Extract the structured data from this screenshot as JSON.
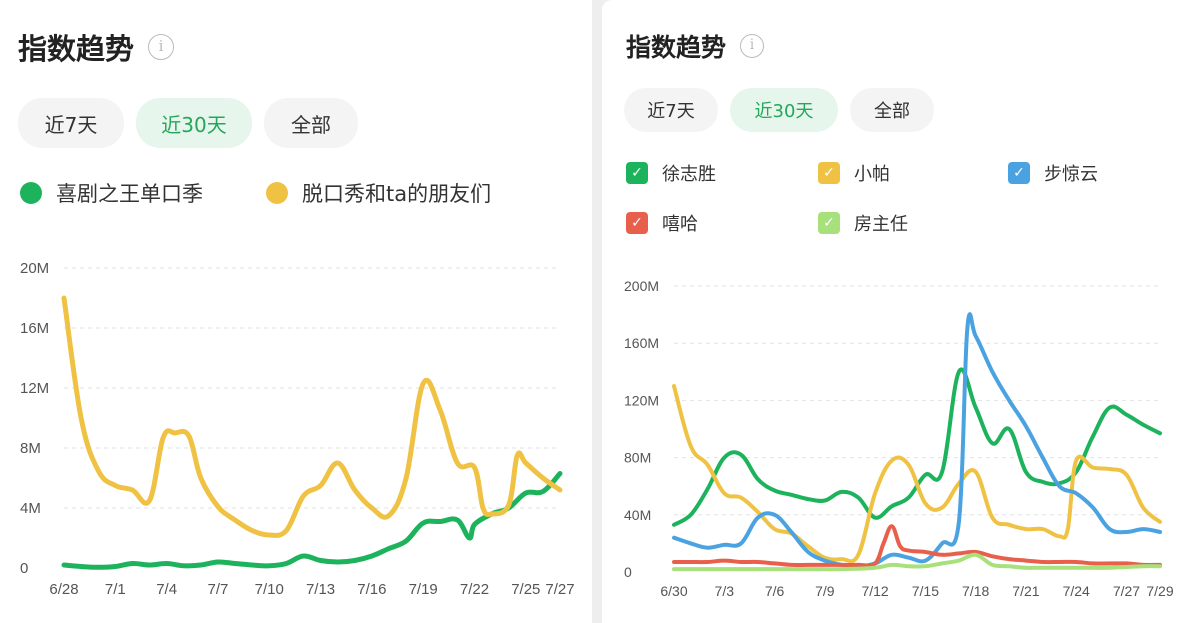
{
  "left": {
    "title": "指数趋势",
    "info_icon": "info-icon",
    "tabs": [
      {
        "label": "近7天",
        "active": false
      },
      {
        "label": "近30天",
        "active": true
      },
      {
        "label": "全部",
        "active": false
      }
    ],
    "legend": [
      {
        "label": "喜剧之王单口季",
        "color": "#1db35c"
      },
      {
        "label": "脱口秀和ta的朋友们",
        "color": "#f0c244"
      }
    ]
  },
  "right": {
    "title": "指数趋势",
    "info_icon": "info-icon",
    "tabs": [
      {
        "label": "近7天",
        "active": false
      },
      {
        "label": "近30天",
        "active": true
      },
      {
        "label": "全部",
        "active": false
      }
    ],
    "legend": [
      {
        "label": "徐志胜",
        "color": "#1db35c",
        "checked": true
      },
      {
        "label": "小帕",
        "color": "#f0c244",
        "checked": true
      },
      {
        "label": "步惊云",
        "color": "#4aa3e0",
        "checked": true
      },
      {
        "label": "嘻哈",
        "color": "#e8604c",
        "checked": true
      },
      {
        "label": "房主任",
        "color": "#a8e07c",
        "checked": true
      }
    ]
  },
  "chart_data": [
    {
      "type": "line",
      "ylim": [
        0,
        20
      ],
      "y_ticks": [
        "0",
        "4M",
        "8M",
        "12M",
        "16M",
        "20M"
      ],
      "y_tick_values": [
        0,
        4,
        8,
        12,
        16,
        20
      ],
      "x_range": [
        0,
        29
      ],
      "x_ticks": [
        {
          "label": "6/28",
          "x": 0
        },
        {
          "label": "7/1",
          "x": 3
        },
        {
          "label": "7/4",
          "x": 6
        },
        {
          "label": "7/7",
          "x": 9
        },
        {
          "label": "7/10",
          "x": 12
        },
        {
          "label": "7/13",
          "x": 15
        },
        {
          "label": "7/16",
          "x": 18
        },
        {
          "label": "7/19",
          "x": 21
        },
        {
          "label": "7/22",
          "x": 24
        },
        {
          "label": "7/25",
          "x": 27
        },
        {
          "label": "7/27",
          "x": 29
        }
      ],
      "grid": true,
      "series": [
        {
          "name": "喜剧之王单口季",
          "color": "#1db35c",
          "points": [
            [
              0,
              0.2
            ],
            [
              1,
              0.1
            ],
            [
              2,
              0.05
            ],
            [
              3,
              0.1
            ],
            [
              4,
              0.3
            ],
            [
              5,
              0.2
            ],
            [
              6,
              0.3
            ],
            [
              7,
              0.15
            ],
            [
              8,
              0.2
            ],
            [
              9,
              0.4
            ],
            [
              10,
              0.3
            ],
            [
              11,
              0.2
            ],
            [
              12,
              0.15
            ],
            [
              13,
              0.3
            ],
            [
              14,
              0.8
            ],
            [
              15,
              0.5
            ],
            [
              16,
              0.4
            ],
            [
              17,
              0.5
            ],
            [
              18,
              0.8
            ],
            [
              19,
              1.3
            ],
            [
              20,
              1.8
            ],
            [
              21,
              3.0
            ],
            [
              22,
              3.1
            ],
            [
              23,
              3.2
            ],
            [
              23.7,
              2.0
            ],
            [
              24,
              2.9
            ],
            [
              25,
              3.6
            ],
            [
              26,
              4.0
            ],
            [
              27,
              5.0
            ],
            [
              28,
              5.1
            ],
            [
              29,
              6.3
            ]
          ]
        },
        {
          "name": "脱口秀和ta的朋友们",
          "color": "#f0c244",
          "points": [
            [
              0,
              18
            ],
            [
              1,
              10
            ],
            [
              2,
              6.5
            ],
            [
              3,
              5.5
            ],
            [
              4,
              5.2
            ],
            [
              5,
              4.5
            ],
            [
              5.8,
              8.7
            ],
            [
              6.5,
              9.0
            ],
            [
              7.3,
              8.8
            ],
            [
              8,
              6
            ],
            [
              9,
              4.1
            ],
            [
              10,
              3.2
            ],
            [
              11,
              2.5
            ],
            [
              12,
              2.2
            ],
            [
              13,
              2.5
            ],
            [
              14,
              4.8
            ],
            [
              15,
              5.5
            ],
            [
              16,
              7.0
            ],
            [
              17,
              5.2
            ],
            [
              18,
              4.0
            ],
            [
              19,
              3.5
            ],
            [
              20,
              6
            ],
            [
              21,
              12.3
            ],
            [
              22,
              10.5
            ],
            [
              23,
              7.0
            ],
            [
              24,
              6.7
            ],
            [
              24.5,
              4.0
            ],
            [
              25,
              3.6
            ],
            [
              26,
              4.2
            ],
            [
              26.5,
              7.5
            ],
            [
              27,
              7.0
            ],
            [
              28,
              6.0
            ],
            [
              29,
              5.2
            ]
          ]
        }
      ]
    },
    {
      "type": "line",
      "ylim": [
        0,
        200
      ],
      "y_ticks": [
        "0",
        "40M",
        "80M",
        "120M",
        "160M",
        "200M"
      ],
      "y_tick_values": [
        0,
        40,
        80,
        120,
        160,
        200
      ],
      "x_range": [
        0,
        29
      ],
      "x_ticks": [
        {
          "label": "6/30",
          "x": 0
        },
        {
          "label": "7/3",
          "x": 3
        },
        {
          "label": "7/6",
          "x": 6
        },
        {
          "label": "7/9",
          "x": 9
        },
        {
          "label": "7/12",
          "x": 12
        },
        {
          "label": "7/15",
          "x": 15
        },
        {
          "label": "7/18",
          "x": 18
        },
        {
          "label": "7/21",
          "x": 21
        },
        {
          "label": "7/24",
          "x": 24
        },
        {
          "label": "7/27",
          "x": 27
        },
        {
          "label": "7/29",
          "x": 29
        }
      ],
      "grid": true,
      "series": [
        {
          "name": "徐志胜",
          "color": "#1db35c",
          "points": [
            [
              0,
              33
            ],
            [
              1,
              40
            ],
            [
              2,
              58
            ],
            [
              3,
              80
            ],
            [
              4,
              82
            ],
            [
              5,
              65
            ],
            [
              6,
              57
            ],
            [
              7,
              54
            ],
            [
              8,
              51
            ],
            [
              9,
              50
            ],
            [
              10,
              56
            ],
            [
              11,
              52
            ],
            [
              12,
              38
            ],
            [
              13,
              46
            ],
            [
              14,
              52
            ],
            [
              15,
              68
            ],
            [
              16,
              70
            ],
            [
              17,
              140
            ],
            [
              18,
              115
            ],
            [
              19,
              90
            ],
            [
              20,
              100
            ],
            [
              21,
              70
            ],
            [
              22,
              63
            ],
            [
              23,
              62
            ],
            [
              24,
              70
            ],
            [
              25,
              95
            ],
            [
              26,
              115
            ],
            [
              27,
              110
            ],
            [
              28,
              103
            ],
            [
              29,
              97
            ]
          ]
        },
        {
          "name": "小帕",
          "color": "#f0c244",
          "points": [
            [
              0,
              130
            ],
            [
              1,
              88
            ],
            [
              2,
              75
            ],
            [
              3,
              55
            ],
            [
              4,
              52
            ],
            [
              5,
              42
            ],
            [
              6,
              30
            ],
            [
              7,
              27
            ],
            [
              8,
              18
            ],
            [
              9,
              10
            ],
            [
              10,
              9
            ],
            [
              11,
              12
            ],
            [
              12,
              55
            ],
            [
              13,
              78
            ],
            [
              14,
              75
            ],
            [
              15,
              48
            ],
            [
              16,
              45
            ],
            [
              17,
              62
            ],
            [
              18,
              70
            ],
            [
              19,
              38
            ],
            [
              20,
              33
            ],
            [
              21,
              30
            ],
            [
              22,
              30
            ],
            [
              23,
              25
            ],
            [
              23.5,
              30
            ],
            [
              24,
              78
            ],
            [
              25,
              73
            ],
            [
              26,
              72
            ],
            [
              27,
              68
            ],
            [
              28,
              45
            ],
            [
              29,
              35
            ]
          ]
        },
        {
          "name": "步惊云",
          "color": "#4aa3e0",
          "points": [
            [
              0,
              24
            ],
            [
              1,
              20
            ],
            [
              2,
              17
            ],
            [
              3,
              19
            ],
            [
              4,
              20
            ],
            [
              5,
              38
            ],
            [
              6,
              40
            ],
            [
              7,
              28
            ],
            [
              8,
              14
            ],
            [
              9,
              8
            ],
            [
              10,
              5
            ],
            [
              11,
              4
            ],
            [
              12,
              6
            ],
            [
              13,
              12
            ],
            [
              14,
              10
            ],
            [
              15,
              8
            ],
            [
              16,
              20
            ],
            [
              17,
              35
            ],
            [
              17.5,
              170
            ],
            [
              18,
              165
            ],
            [
              19,
              140
            ],
            [
              20,
              120
            ],
            [
              21,
              102
            ],
            [
              22,
              80
            ],
            [
              23,
              60
            ],
            [
              24,
              55
            ],
            [
              25,
              45
            ],
            [
              26,
              30
            ],
            [
              27,
              28
            ],
            [
              28,
              30
            ],
            [
              29,
              28
            ]
          ]
        },
        {
          "name": "嘻哈",
          "color": "#e8604c",
          "points": [
            [
              0,
              7
            ],
            [
              1,
              7
            ],
            [
              2,
              7
            ],
            [
              3,
              8
            ],
            [
              4,
              7
            ],
            [
              5,
              7
            ],
            [
              6,
              6
            ],
            [
              7,
              5
            ],
            [
              8,
              5
            ],
            [
              9,
              5
            ],
            [
              10,
              5
            ],
            [
              11,
              5
            ],
            [
              12,
              6
            ],
            [
              12.5,
              20
            ],
            [
              13,
              32
            ],
            [
              13.5,
              18
            ],
            [
              14,
              15
            ],
            [
              15,
              14
            ],
            [
              16,
              12
            ],
            [
              17,
              13
            ],
            [
              18,
              14
            ],
            [
              19,
              11
            ],
            [
              20,
              9
            ],
            [
              21,
              8
            ],
            [
              22,
              7
            ],
            [
              23,
              7
            ],
            [
              24,
              7
            ],
            [
              25,
              6
            ],
            [
              26,
              6
            ],
            [
              27,
              6
            ],
            [
              28,
              5
            ],
            [
              29,
              5
            ]
          ]
        },
        {
          "name": "房主任",
          "color": "#a8e07c",
          "points": [
            [
              0,
              2
            ],
            [
              2,
              2
            ],
            [
              4,
              2
            ],
            [
              6,
              2
            ],
            [
              8,
              2
            ],
            [
              10,
              2
            ],
            [
              12,
              3
            ],
            [
              13,
              5
            ],
            [
              14,
              4
            ],
            [
              15,
              4
            ],
            [
              16,
              6
            ],
            [
              17,
              8
            ],
            [
              18,
              12
            ],
            [
              19,
              5
            ],
            [
              20,
              4
            ],
            [
              21,
              3
            ],
            [
              22,
              3
            ],
            [
              24,
              3
            ],
            [
              26,
              3
            ],
            [
              28,
              4
            ],
            [
              29,
              4
            ]
          ]
        }
      ]
    }
  ]
}
